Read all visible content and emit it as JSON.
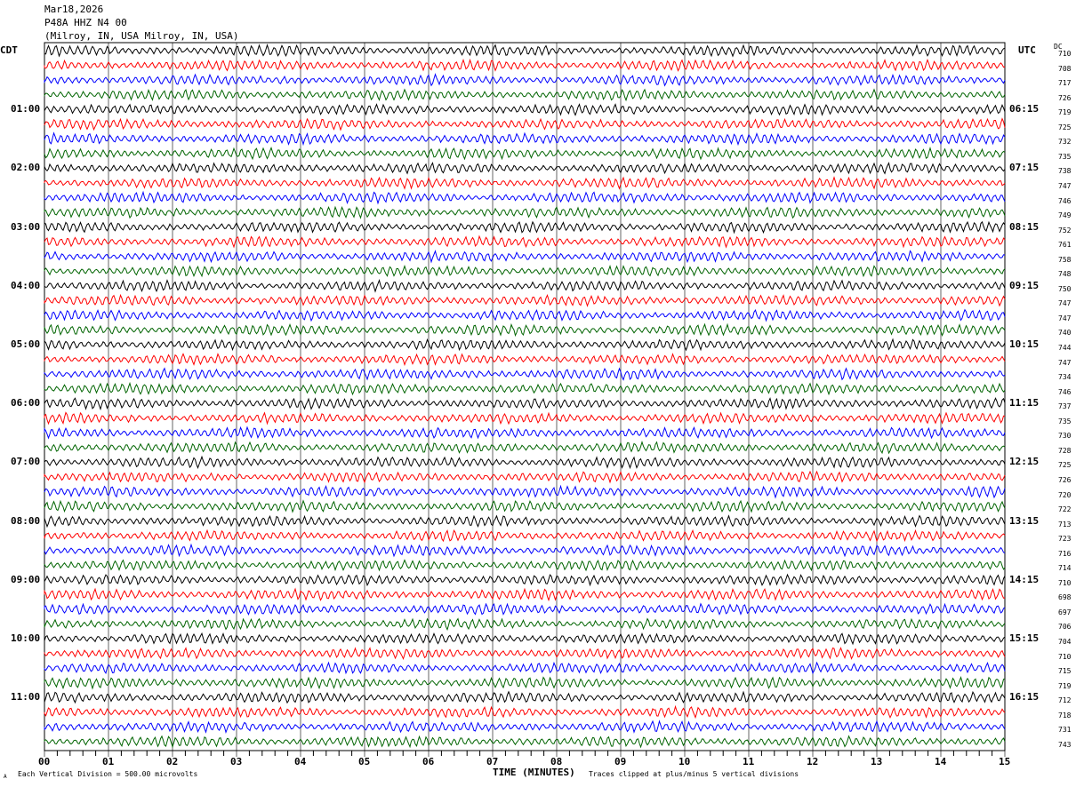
{
  "header": {
    "date": "Mar18,2026",
    "station": "P48A HHZ N4 00",
    "location": "(Milroy, IN, USA Milroy, IN, USA)"
  },
  "left_tz": "CDT",
  "right_tz": "UTC",
  "dc_header": "DC",
  "chart_data": {
    "type": "line",
    "title": "",
    "xlabel": "TIME (MINUTES)",
    "xlim": [
      0,
      15
    ],
    "x_ticks": [
      "00",
      "01",
      "02",
      "03",
      "04",
      "05",
      "06",
      "07",
      "08",
      "09",
      "10",
      "11",
      "12",
      "13",
      "14",
      "15"
    ],
    "left_time_labels": [
      "01:00",
      "02:00",
      "03:00",
      "04:00",
      "05:00",
      "06:00",
      "07:00",
      "08:00",
      "09:00",
      "10:00",
      "11:00"
    ],
    "right_time_labels": [
      "06:15",
      "07:15",
      "08:15",
      "09:15",
      "10:15",
      "11:15",
      "12:15",
      "13:15",
      "14:15",
      "15:15",
      "16:15"
    ],
    "trace_colors": [
      "#000000",
      "#ff0000",
      "#0000ff",
      "#006400"
    ],
    "trace_count": 48,
    "dc_offsets": [
      710,
      708,
      717,
      726,
      719,
      725,
      732,
      735,
      738,
      747,
      746,
      749,
      752,
      761,
      758,
      748,
      750,
      747,
      747,
      740,
      744,
      747,
      734,
      746,
      737,
      735,
      730,
      728,
      725,
      726,
      720,
      722,
      713,
      723,
      716,
      714,
      710,
      698,
      697,
      706,
      704,
      710,
      715,
      719,
      712,
      718,
      731,
      743
    ],
    "grid": true
  },
  "footer": {
    "scale": "Each Vertical Division =  500.00 microvolts",
    "clip": "Traces clipped at plus/minus 5 vertical divisions",
    "corner": "A"
  }
}
